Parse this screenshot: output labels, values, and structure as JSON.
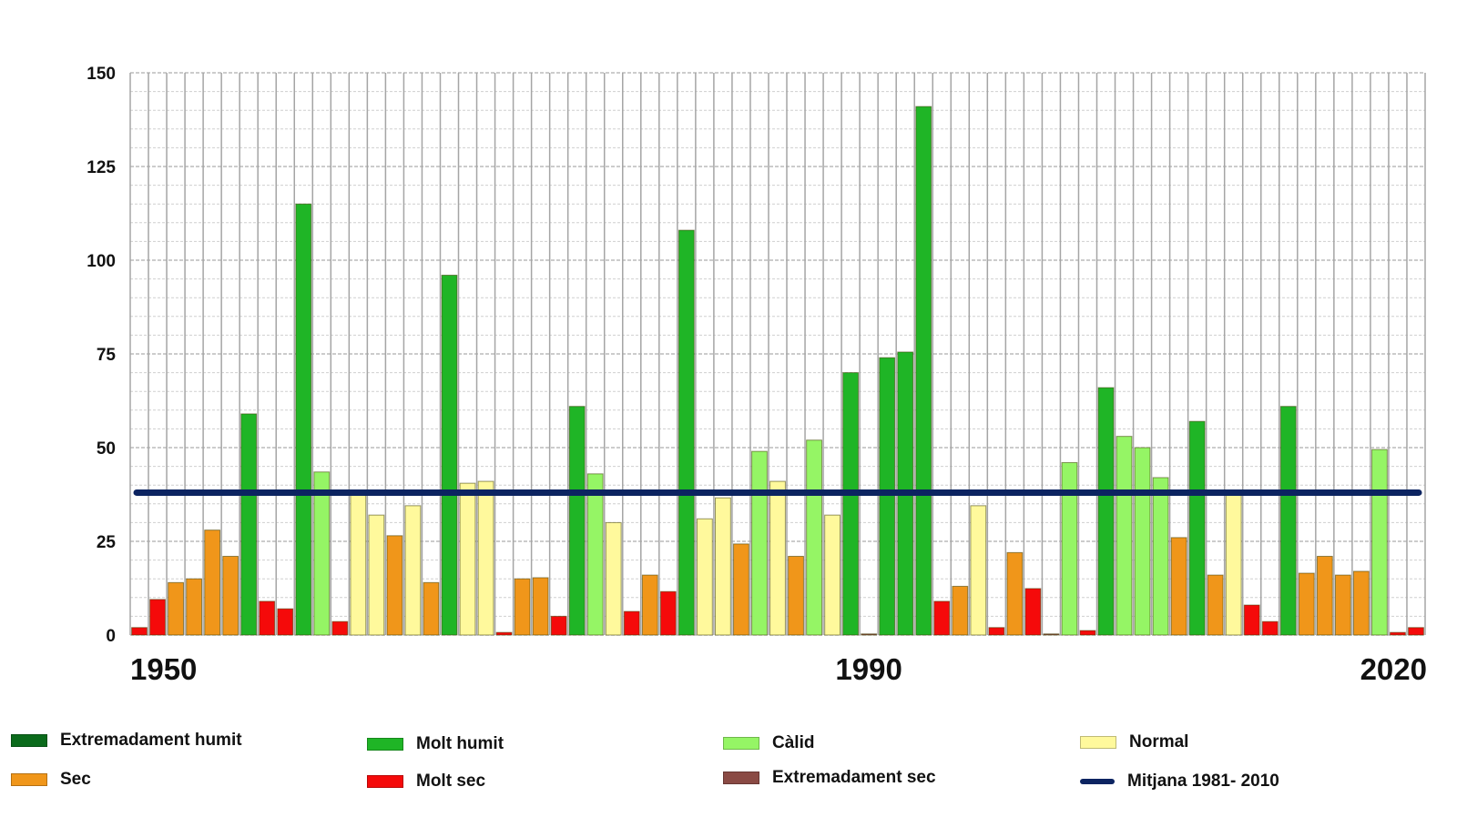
{
  "chart_data": {
    "type": "bar",
    "title": "",
    "xlabel": "",
    "ylabel": "",
    "ylim": [
      0,
      150
    ],
    "yticks": [
      0,
      25,
      50,
      75,
      100,
      125,
      150
    ],
    "x_tick_labels": [
      {
        "year": 1950,
        "label": "1950"
      },
      {
        "year": 1990,
        "label": "1990"
      },
      {
        "year": 2020,
        "label": "2020"
      }
    ],
    "grid": true,
    "categories": [
      1950,
      1951,
      1952,
      1953,
      1954,
      1955,
      1956,
      1957,
      1958,
      1959,
      1960,
      1961,
      1962,
      1963,
      1964,
      1965,
      1966,
      1967,
      1968,
      1969,
      1970,
      1971,
      1972,
      1973,
      1974,
      1975,
      1976,
      1977,
      1978,
      1979,
      1980,
      1981,
      1982,
      1983,
      1984,
      1985,
      1986,
      1987,
      1988,
      1989,
      1990,
      1991,
      1992,
      1993,
      1994,
      1995,
      1996,
      1997,
      1998,
      1999,
      2000,
      2001,
      2002,
      2003,
      2004,
      2005,
      2006,
      2007,
      2008,
      2009,
      2010,
      2011,
      2012,
      2013,
      2014,
      2015,
      2016,
      2017,
      2018,
      2019,
      2020
    ],
    "values": [
      2,
      9.5,
      14,
      15,
      28,
      21,
      59,
      9,
      7,
      115,
      43.5,
      3.6,
      38,
      32,
      26.5,
      34.5,
      14,
      96,
      40.5,
      41,
      0.7,
      15,
      15.3,
      5,
      61,
      43,
      30,
      6.3,
      16,
      11.6,
      108,
      31,
      36.6,
      24.3,
      49,
      41,
      21,
      52,
      32,
      70,
      0.3,
      74,
      75.5,
      141,
      9,
      13,
      34.5,
      2,
      22,
      12.4,
      0.3,
      46,
      1.2,
      66,
      53,
      50,
      42,
      26,
      57,
      16,
      38,
      8,
      3.6,
      61,
      16.5,
      21,
      16,
      17,
      49.5,
      0.7,
      2
    ],
    "classes": [
      "ms",
      "ms",
      "s",
      "s",
      "s",
      "s",
      "mh",
      "ms",
      "ms",
      "mh",
      "c",
      "ms",
      "n",
      "n",
      "s",
      "n",
      "s",
      "mh",
      "n",
      "n",
      "ms",
      "s",
      "s",
      "ms",
      "mh",
      "c",
      "n",
      "ms",
      "s",
      "ms",
      "mh",
      "n",
      "n",
      "s",
      "c",
      "n",
      "s",
      "c",
      "n",
      "mh",
      "es",
      "mh",
      "mh",
      "mh",
      "ms",
      "s",
      "n",
      "ms",
      "s",
      "ms",
      "es",
      "c",
      "ms",
      "mh",
      "c",
      "c",
      "c",
      "s",
      "mh",
      "s",
      "n",
      "ms",
      "ms",
      "mh",
      "s",
      "s",
      "s",
      "s",
      "c",
      "ms",
      "ms"
    ],
    "mean_line": {
      "label": "Mitjana 1981- 2010",
      "value": 38
    },
    "legend_placement": "bottom",
    "legend": [
      {
        "key": "eh",
        "label": "Extremadament humit",
        "color": "#0b6b1c"
      },
      {
        "key": "mh",
        "label": "Molt humit",
        "color": "#1fb526"
      },
      {
        "key": "c",
        "label": "Càlid",
        "color": "#95f565"
      },
      {
        "key": "n",
        "label": "Normal",
        "color": "#fff99c"
      },
      {
        "key": "s",
        "label": "Sec",
        "color": "#f0961a"
      },
      {
        "key": "ms",
        "label": "Molt sec",
        "color": "#f50a0a"
      },
      {
        "key": "es",
        "label": "Extremadament sec",
        "color": "#8a4a44"
      },
      {
        "key": "mean",
        "label": "Mitjana 1981- 2010",
        "color": "#0c2461"
      }
    ]
  }
}
